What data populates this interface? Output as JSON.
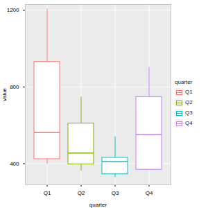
{
  "chart_data": {
    "type": "box",
    "x_label": "quarter",
    "y_label": "value",
    "legend_title": "quarter",
    "legend": "right",
    "categories": [
      "Q1",
      "Q2",
      "Q3",
      "Q4"
    ],
    "min": [
      397,
      362,
      328,
      369
    ],
    "q1": [
      424,
      397,
      345,
      369
    ],
    "median": [
      562,
      455,
      410,
      552
    ],
    "q3": [
      931,
      610,
      431,
      748
    ],
    "max": [
      1207,
      748,
      541,
      903
    ],
    "colors": [
      "#F8766D",
      "#7CAE00",
      "#00BFC4",
      "#C77CFF"
    ],
    "ylim": [
      290,
      1230
    ],
    "yticks": [
      400,
      800,
      1200
    ],
    "grid": true
  }
}
